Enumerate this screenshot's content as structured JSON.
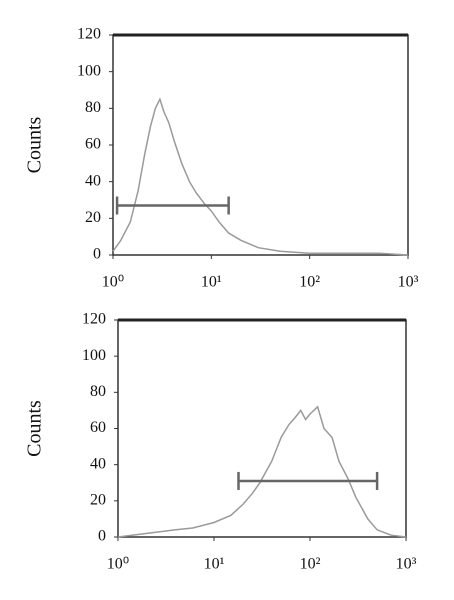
{
  "chart_data": [
    {
      "type": "line",
      "ylabel": "Counts",
      "log_x": true,
      "color": "#9a9a9a",
      "x": [
        1,
        1.2,
        1.5,
        1.8,
        2.1,
        2.4,
        2.7,
        3,
        3.3,
        3.7,
        4.2,
        5,
        6,
        7,
        8.5,
        10,
        12,
        15,
        20,
        30,
        50,
        100,
        200,
        500,
        1000
      ],
      "values": [
        2,
        8,
        18,
        35,
        55,
        70,
        80,
        85,
        78,
        72,
        62,
        50,
        40,
        34,
        28,
        24,
        18,
        12,
        8,
        4,
        2,
        1,
        1,
        1,
        0
      ],
      "gate": {
        "x": [
          1.1,
          15
        ],
        "y": 27
      },
      "xlim": [
        1,
        1000
      ],
      "xticks": [
        {
          "value": 1,
          "label": "10⁰"
        },
        {
          "value": 10,
          "label": "10¹"
        },
        {
          "value": 100,
          "label": "10²"
        },
        {
          "value": 1000,
          "label": "10³"
        }
      ],
      "ylim": [
        0,
        120
      ],
      "yticks": [
        0,
        20,
        40,
        60,
        80,
        100,
        120
      ]
    },
    {
      "type": "line",
      "ylabel": "Counts",
      "log_x": true,
      "color": "#9a9a9a",
      "x": [
        1,
        2,
        4,
        6,
        10,
        15,
        20,
        25,
        30,
        40,
        50,
        60,
        70,
        80,
        90,
        100,
        120,
        140,
        170,
        200,
        250,
        300,
        400,
        500,
        700,
        1000
      ],
      "values": [
        0,
        2,
        4,
        5,
        8,
        12,
        18,
        24,
        30,
        42,
        55,
        62,
        66,
        70,
        65,
        68,
        72,
        60,
        55,
        42,
        32,
        22,
        10,
        4,
        1,
        0
      ],
      "gate": {
        "x": [
          18,
          500
        ],
        "y": 31
      },
      "xlim": [
        1,
        1000
      ],
      "xticks": [
        {
          "value": 1,
          "label": "10⁰"
        },
        {
          "value": 10,
          "label": "10¹"
        },
        {
          "value": 100,
          "label": "10²"
        },
        {
          "value": 1000,
          "label": "10³"
        }
      ],
      "ylim": [
        0,
        120
      ],
      "yticks": [
        0,
        20,
        40,
        60,
        80,
        100,
        120
      ]
    }
  ]
}
